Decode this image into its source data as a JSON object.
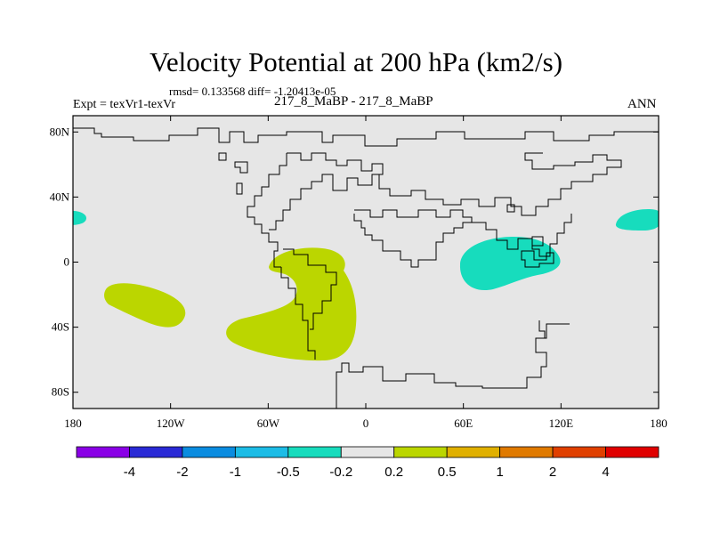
{
  "figure": {
    "title": "Velocity Potential at 200 hPa (km2/s)",
    "stats": "rmsd= 0.133568 diff= -1.20413e-05",
    "left_label": "Expt = texVr1-texVr",
    "center_label": "217_8_MaBP - 217_8_MaBP",
    "right_label": "ANN"
  },
  "map": {
    "projection": "cylindrical-equidistant",
    "lon_range": [
      -180,
      180
    ],
    "lat_range": [
      -90,
      90
    ],
    "lat_ticks": [
      {
        "value": 80,
        "label": "80N"
      },
      {
        "value": 40,
        "label": "40N"
      },
      {
        "value": 0,
        "label": "0"
      },
      {
        "value": -40,
        "label": "40S"
      },
      {
        "value": -80,
        "label": "80S"
      }
    ],
    "lon_ticks": [
      {
        "value": -180,
        "label": "180"
      },
      {
        "value": -120,
        "label": "120W"
      },
      {
        "value": -60,
        "label": "60W"
      },
      {
        "value": 0,
        "label": "0"
      },
      {
        "value": 60,
        "label": "60E"
      },
      {
        "value": 120,
        "label": "120E"
      },
      {
        "value": 180,
        "label": "180"
      }
    ],
    "background_color": "#e6e6e6"
  },
  "anomalies": [
    {
      "name": "positive-anomaly-south-pacific",
      "level": "0.2 to 0.5",
      "color": "#bbd600"
    },
    {
      "name": "positive-anomaly-south-america-atlantic",
      "level": "0.2 to 0.5",
      "color": "#bbd600"
    },
    {
      "name": "negative-anomaly-indian-ocean",
      "level": "-0.5 to -0.2",
      "color": "#17dcbd"
    },
    {
      "name": "negative-anomaly-west-pacific",
      "level": "-0.5 to -0.2",
      "color": "#17dcbd"
    },
    {
      "name": "negative-anomaly-dateline-edge",
      "level": "-0.5 to -0.2",
      "color": "#17dcbd"
    }
  ],
  "colorbar": {
    "colors": [
      "#8a00e6",
      "#2a2ad6",
      "#0a8ce0",
      "#1cbce6",
      "#17dcbd",
      "#e6e6e6",
      "#bbd600",
      "#e0b000",
      "#e07a00",
      "#e04000",
      "#e00000"
    ],
    "labels": [
      "-4",
      "-2",
      "-1",
      "-0.5",
      "-0.2",
      "0.2",
      "0.5",
      "1",
      "2",
      "4"
    ]
  }
}
